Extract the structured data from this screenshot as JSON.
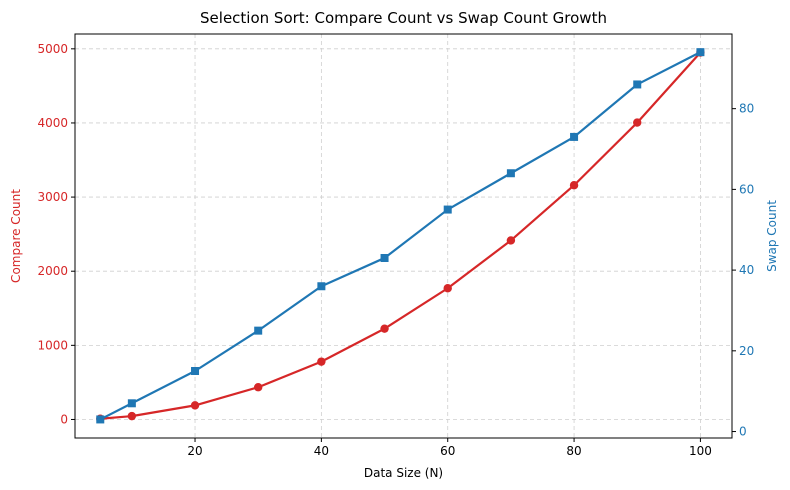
{
  "chart_data": {
    "type": "line",
    "title": "Selection Sort: Compare Count vs Swap Count Growth",
    "xlabel": "Data Size (N)",
    "ylabel_left": "Compare Count",
    "ylabel_right": "Swap Count",
    "x": [
      5,
      10,
      20,
      30,
      40,
      50,
      60,
      70,
      80,
      90,
      100
    ],
    "xlim": [
      1,
      105
    ],
    "xticks": [
      20,
      40,
      60,
      80,
      100
    ],
    "grid": true,
    "grid_style": "dashed",
    "series": [
      {
        "axis": "left",
        "color": "#d62728",
        "marker": "circle",
        "values": [
          10,
          45,
          190,
          435,
          780,
          1225,
          1770,
          2415,
          3160,
          4005,
          4950
        ]
      },
      {
        "axis": "right",
        "color": "#1f77b4",
        "marker": "square",
        "values": [
          3,
          7,
          15,
          25,
          36,
          43,
          55,
          64,
          73,
          86,
          94
        ]
      }
    ],
    "y_left": {
      "min": -250,
      "max": 5200,
      "ticks": [
        0,
        1000,
        2000,
        3000,
        4000,
        5000
      ],
      "color": "#d62728"
    },
    "y_right": {
      "min": -1.6,
      "max": 98.5,
      "ticks": [
        0,
        20,
        40,
        60,
        80
      ],
      "color": "#1f77b4"
    }
  }
}
